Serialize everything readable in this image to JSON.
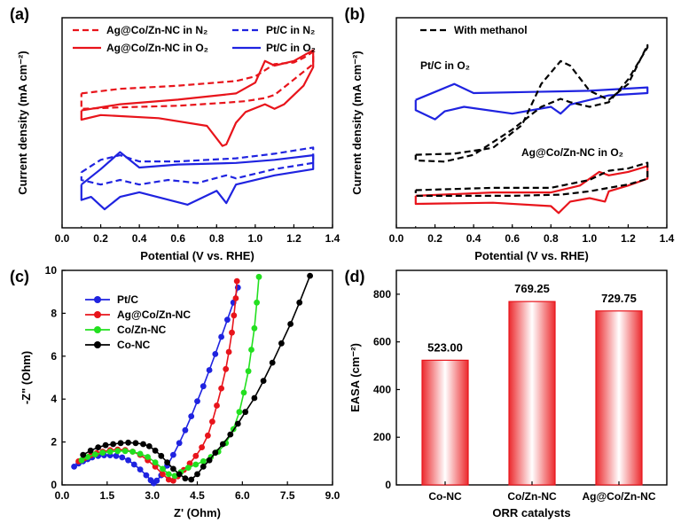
{
  "chart_data": [
    {
      "panel": "(a)",
      "type": "line",
      "xlabel": "Potential (V vs. RHE)",
      "ylabel": "Current density (mA cm⁻²)",
      "xlim": [
        0.0,
        1.4
      ],
      "xticks": [
        "0.0",
        "0.2",
        "0.4",
        "0.6",
        "0.8",
        "1.0",
        "1.2",
        "1.4"
      ],
      "y_tick_labels": false,
      "legend_position": "top",
      "series": [
        {
          "name": "Ag@Co/Zn-NC in N₂",
          "color": "#e8141b",
          "dash": true,
          "upper": {
            "x": [
              0.1,
              0.3,
              0.6,
              0.9,
              1.0,
              1.1,
              1.2,
              1.25,
              1.3
            ],
            "y": [
              -1.25,
              -1.1,
              -1.0,
              -0.85,
              -0.7,
              -0.3,
              -0.25,
              -0.1,
              0.1
            ]
          },
          "lower": {
            "x": [
              1.3,
              1.2,
              1.1,
              1.05,
              0.95,
              0.85,
              0.6,
              0.3,
              0.1
            ],
            "y": [
              -0.3,
              -0.8,
              -1.3,
              -1.4,
              -1.5,
              -1.55,
              -1.65,
              -1.7,
              -1.75
            ]
          }
        },
        {
          "name": "Ag@Co/Zn-NC in O₂",
          "color": "#e8141b",
          "dash": false,
          "upper": {
            "x": [
              0.1,
              0.3,
              0.6,
              0.9,
              1.0,
              1.05,
              1.1,
              1.2,
              1.3
            ],
            "y": [
              -1.8,
              -1.6,
              -1.45,
              -1.25,
              -0.9,
              -0.2,
              -0.35,
              -0.2,
              0.15
            ]
          },
          "lower": {
            "x": [
              1.3,
              1.25,
              1.15,
              1.1,
              1.05,
              0.95,
              0.9,
              0.85,
              0.83,
              0.75,
              0.5,
              0.2,
              0.1
            ],
            "y": [
              -0.4,
              -1.0,
              -1.6,
              -1.75,
              -1.6,
              -1.85,
              -2.2,
              -2.9,
              -2.95,
              -2.3,
              -2.05,
              -1.95,
              -2.1
            ]
          }
        },
        {
          "name": "Pt/C in N₂",
          "color": "#1f23e0",
          "dash": true,
          "upper": {
            "x": [
              0.1,
              0.2,
              0.3,
              0.4,
              0.6,
              0.9,
              1.1,
              1.3
            ],
            "y": [
              -3.8,
              -3.4,
              -3.25,
              -3.45,
              -3.45,
              -3.35,
              -3.2,
              -3.0
            ]
          },
          "lower": {
            "x": [
              1.3,
              1.1,
              0.9,
              0.85,
              0.7,
              0.55,
              0.4,
              0.3,
              0.2,
              0.1
            ],
            "y": [
              -3.5,
              -3.7,
              -4.0,
              -3.9,
              -4.15,
              -4.05,
              -4.2,
              -4.05,
              -4.2,
              -4.05
            ]
          }
        },
        {
          "name": "Pt/C in O₂",
          "color": "#1f23e0",
          "dash": false,
          "upper": {
            "x": [
              0.1,
              0.2,
              0.3,
              0.4,
              0.6,
              0.9,
              1.1,
              1.3
            ],
            "y": [
              -4.2,
              -3.7,
              -3.15,
              -3.65,
              -3.55,
              -3.5,
              -3.4,
              -3.25
            ]
          },
          "lower": {
            "x": [
              1.3,
              1.1,
              0.9,
              0.85,
              0.8,
              0.65,
              0.4,
              0.3,
              0.22,
              0.15,
              0.1
            ],
            "y": [
              -3.7,
              -3.9,
              -4.2,
              -4.8,
              -4.4,
              -4.85,
              -4.45,
              -4.6,
              -5.0,
              -4.6,
              -4.7
            ]
          }
        }
      ]
    },
    {
      "panel": "(b)",
      "type": "line",
      "xlabel": "Potential (V vs. RHE)",
      "ylabel": "Current density (mA cm⁻²)",
      "xlim": [
        0.0,
        1.4
      ],
      "xticks": [
        "0.0",
        "0.2",
        "0.4",
        "0.6",
        "0.8",
        "1.0",
        "1.2",
        "1.4"
      ],
      "y_tick_labels": false,
      "legend_position": "top-left",
      "legend": "With methanol",
      "annotations": [
        "Pt/C in O₂",
        "Ag@Co/Zn-NC in O₂"
      ],
      "series": [
        {
          "name": "Pt/C in O₂",
          "color": "#1f23e0",
          "dash": false,
          "upper": {
            "x": [
              0.1,
              0.2,
              0.3,
              0.4,
              0.7,
              1.0,
              1.2,
              1.3
            ],
            "y": [
              -0.9,
              -0.55,
              -0.2,
              -0.6,
              -0.55,
              -0.5,
              -0.4,
              -0.35
            ]
          },
          "lower": {
            "x": [
              1.3,
              1.1,
              0.9,
              0.85,
              0.8,
              0.6,
              0.35,
              0.25,
              0.2,
              0.1
            ],
            "y": [
              -0.6,
              -0.7,
              -1.1,
              -1.5,
              -1.2,
              -1.5,
              -1.2,
              -1.4,
              -1.75,
              -1.35
            ]
          }
        },
        {
          "name": "With methanol (Pt/C)",
          "color": "#000000",
          "dash": true,
          "upper": {
            "x": [
              0.1,
              0.3,
              0.5,
              0.65,
              0.75,
              0.85,
              0.9,
              1.0,
              1.1,
              1.2,
              1.3
            ],
            "y": [
              -3.3,
              -3.25,
              -3.0,
              -2.0,
              -0.2,
              0.8,
              0.6,
              -0.5,
              -0.9,
              -0.2,
              1.5
            ]
          },
          "lower": {
            "x": [
              1.3,
              1.2,
              1.1,
              1.0,
              0.9,
              0.85,
              0.75,
              0.6,
              0.4,
              0.25,
              0.1
            ],
            "y": [
              1.4,
              0.0,
              -1.0,
              -1.2,
              -1.0,
              -0.85,
              -1.2,
              -2.2,
              -3.3,
              -3.6,
              -3.55
            ]
          }
        },
        {
          "name": "Ag@Co/Zn-NC in O₂",
          "color": "#e8141b",
          "dash": false,
          "upper": {
            "x": [
              0.1,
              0.5,
              0.8,
              0.95,
              1.05,
              1.1,
              1.2,
              1.3
            ],
            "y": [
              -5.1,
              -4.95,
              -4.95,
              -4.65,
              -4.05,
              -4.2,
              -4.05,
              -3.8
            ]
          },
          "lower": {
            "x": [
              1.3,
              1.2,
              1.1,
              1.08,
              1.0,
              0.9,
              0.84,
              0.8,
              0.5,
              0.1
            ],
            "y": [
              -4.35,
              -4.65,
              -4.9,
              -5.35,
              -5.2,
              -5.35,
              -5.85,
              -5.55,
              -5.4,
              -5.45
            ]
          }
        },
        {
          "name": "With methanol (Ag@Co/Zn-NC)",
          "color": "#000000",
          "dash": true,
          "upper": {
            "x": [
              0.1,
              0.5,
              0.8,
              1.0,
              1.1,
              1.2,
              1.3
            ],
            "y": [
              -4.85,
              -4.75,
              -4.75,
              -4.4,
              -4.0,
              -3.9,
              -3.65
            ]
          },
          "lower": {
            "x": [
              1.3,
              1.2,
              1.1,
              1.0,
              0.85,
              0.6,
              0.3,
              0.1
            ],
            "y": [
              -4.35,
              -4.6,
              -4.75,
              -4.9,
              -5.05,
              -5.1,
              -5.1,
              -5.1
            ]
          }
        }
      ]
    },
    {
      "panel": "(c)",
      "type": "scatter",
      "xlabel": "Z' (Ohm)",
      "ylabel": "-Z\" (Ohm)",
      "xlim": [
        0,
        9
      ],
      "ylim": [
        0,
        10
      ],
      "xticks": [
        "0.0",
        "1.5",
        "3.0",
        "4.5",
        "6.0",
        "7.5",
        "9.0"
      ],
      "yticks": [
        "0",
        "2",
        "4",
        "6",
        "8",
        "10"
      ],
      "legend_position": "top-left",
      "series": [
        {
          "name": "Pt/C",
          "color": "#1f23e0",
          "x": [
            0.4,
            0.55,
            0.7,
            0.85,
            1.0,
            1.2,
            1.4,
            1.6,
            1.8,
            2.0,
            2.2,
            2.4,
            2.6,
            2.8,
            2.95,
            3.05,
            3.15,
            3.3,
            3.5,
            3.7,
            3.9,
            4.1,
            4.3,
            4.5,
            4.7,
            4.9,
            5.1,
            5.3,
            5.5,
            5.7,
            5.85
          ],
          "y": [
            0.85,
            1.0,
            1.1,
            1.2,
            1.28,
            1.35,
            1.38,
            1.38,
            1.35,
            1.28,
            1.15,
            0.95,
            0.72,
            0.45,
            0.22,
            0.08,
            0.2,
            0.45,
            0.9,
            1.4,
            1.95,
            2.55,
            3.2,
            3.9,
            4.6,
            5.35,
            6.1,
            6.9,
            7.7,
            8.5,
            9.2
          ]
        },
        {
          "name": "Ag@Co/Zn-NC",
          "color": "#e8141b",
          "x": [
            0.55,
            0.75,
            0.95,
            1.15,
            1.35,
            1.6,
            1.85,
            2.1,
            2.35,
            2.6,
            2.85,
            3.1,
            3.35,
            3.55,
            3.7,
            3.85,
            4.05,
            4.25,
            4.45,
            4.65,
            4.85,
            5.0,
            5.15,
            5.3,
            5.45,
            5.55,
            5.65,
            5.72,
            5.78,
            5.82
          ],
          "y": [
            1.1,
            1.25,
            1.38,
            1.48,
            1.55,
            1.62,
            1.65,
            1.63,
            1.55,
            1.4,
            1.15,
            0.85,
            0.5,
            0.25,
            0.2,
            0.4,
            0.7,
            1.0,
            1.35,
            1.75,
            2.3,
            2.95,
            3.7,
            4.5,
            5.4,
            6.2,
            7.1,
            7.9,
            8.7,
            9.5
          ]
        },
        {
          "name": "Co/Zn-NC",
          "color": "#22e01f",
          "x": [
            0.65,
            0.85,
            1.1,
            1.35,
            1.6,
            1.85,
            2.1,
            2.35,
            2.6,
            2.85,
            3.1,
            3.35,
            3.55,
            3.75,
            3.95,
            4.2,
            4.45,
            4.7,
            4.95,
            5.2,
            5.45,
            5.7,
            5.9,
            6.05,
            6.2,
            6.3,
            6.4,
            6.48,
            6.55
          ],
          "y": [
            1.15,
            1.3,
            1.42,
            1.5,
            1.55,
            1.58,
            1.58,
            1.55,
            1.45,
            1.3,
            1.05,
            0.75,
            0.5,
            0.42,
            0.6,
            0.8,
            0.95,
            1.1,
            1.3,
            1.55,
            1.95,
            2.6,
            3.4,
            4.3,
            5.3,
            6.3,
            7.3,
            8.5,
            9.7
          ]
        },
        {
          "name": "Co-NC",
          "color": "#000000",
          "x": [
            0.7,
            0.95,
            1.2,
            1.45,
            1.7,
            1.95,
            2.2,
            2.45,
            2.7,
            2.9,
            3.1,
            3.3,
            3.5,
            3.7,
            3.9,
            4.1,
            4.3,
            4.5,
            4.7,
            4.9,
            5.1,
            5.35,
            5.6,
            5.85,
            6.1,
            6.4,
            6.7,
            7.0,
            7.3,
            7.6,
            7.9,
            8.25
          ],
          "y": [
            1.4,
            1.6,
            1.75,
            1.85,
            1.9,
            1.95,
            1.97,
            1.95,
            1.9,
            1.8,
            1.6,
            1.35,
            1.05,
            0.75,
            0.5,
            0.3,
            0.25,
            0.5,
            0.85,
            1.15,
            1.5,
            1.9,
            2.35,
            2.85,
            3.4,
            4.05,
            4.85,
            5.7,
            6.6,
            7.5,
            8.5,
            9.75
          ]
        }
      ]
    },
    {
      "panel": "(d)",
      "type": "bar",
      "xlabel": "ORR catalysts",
      "ylabel": "EASA (cm⁻²)",
      "ylim": [
        0,
        900
      ],
      "yticks": [
        "0",
        "200",
        "400",
        "600",
        "800"
      ],
      "categories": [
        "Co-NC",
        "Co/Zn-NC",
        "Ag@Co/Zn-NC"
      ],
      "values": [
        523.0,
        769.25,
        729.75
      ],
      "value_labels": [
        "523.00",
        "769.25",
        "729.75"
      ],
      "bar_color": "#e8141b"
    }
  ]
}
